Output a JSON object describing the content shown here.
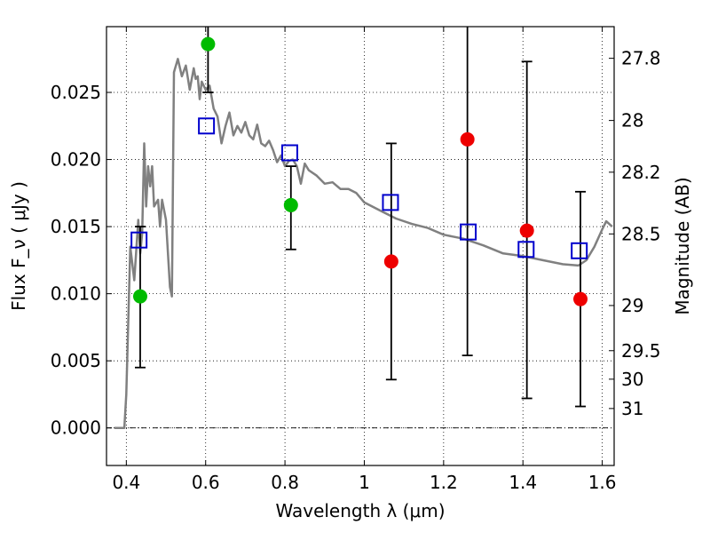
{
  "chart_data": {
    "type": "scatter",
    "xlabel": "Wavelength  λ (μm)",
    "ylabel": "Flux  F_ν  ( μJy )",
    "ylabel_right": "Magnitude (AB)",
    "xlim": [
      0.35,
      1.63
    ],
    "ylim": [
      -0.0028,
      0.0299
    ],
    "grid": true,
    "x_ticks": [
      {
        "value": 0.4,
        "label": "0.4"
      },
      {
        "value": 0.6,
        "label": "0.6"
      },
      {
        "value": 0.8,
        "label": "0.8"
      },
      {
        "value": 1.0,
        "label": "1"
      },
      {
        "value": 1.2,
        "label": "1.2"
      },
      {
        "value": 1.4,
        "label": "1.4"
      },
      {
        "value": 1.6,
        "label": "1.6"
      }
    ],
    "y_ticks": [
      {
        "value": 0.0,
        "label": "0.000"
      },
      {
        "value": 0.005,
        "label": "0.005"
      },
      {
        "value": 0.01,
        "label": "0.010"
      },
      {
        "value": 0.015,
        "label": "0.015"
      },
      {
        "value": 0.02,
        "label": "0.020"
      },
      {
        "value": 0.025,
        "label": "0.025"
      }
    ],
    "mag_ticks": [
      {
        "value": 27.8,
        "label": "27.8"
      },
      {
        "value": 28.0,
        "label": "28"
      },
      {
        "value": 28.2,
        "label": "28.2"
      },
      {
        "value": 28.5,
        "label": "28.5"
      },
      {
        "value": 29.0,
        "label": "29"
      },
      {
        "value": 29.5,
        "label": "29.5"
      },
      {
        "value": 30.0,
        "label": "30"
      },
      {
        "value": 31.0,
        "label": "31"
      }
    ],
    "template_spectrum": {
      "color": "#808080",
      "x": [
        0.37,
        0.395,
        0.4,
        0.41,
        0.42,
        0.43,
        0.435,
        0.44,
        0.445,
        0.45,
        0.455,
        0.46,
        0.465,
        0.47,
        0.48,
        0.485,
        0.49,
        0.5,
        0.51,
        0.515,
        0.52,
        0.53,
        0.54,
        0.55,
        0.56,
        0.57,
        0.575,
        0.58,
        0.585,
        0.59,
        0.6,
        0.61,
        0.62,
        0.63,
        0.64,
        0.65,
        0.66,
        0.67,
        0.68,
        0.69,
        0.7,
        0.71,
        0.72,
        0.73,
        0.74,
        0.75,
        0.76,
        0.77,
        0.78,
        0.79,
        0.8,
        0.81,
        0.82,
        0.83,
        0.84,
        0.85,
        0.86,
        0.88,
        0.9,
        0.92,
        0.94,
        0.96,
        0.98,
        1.0,
        1.04,
        1.08,
        1.12,
        1.16,
        1.2,
        1.25,
        1.3,
        1.35,
        1.4,
        1.45,
        1.5,
        1.54,
        1.56,
        1.58,
        1.6,
        1.61,
        1.625
      ],
      "y": [
        0.0,
        0.0,
        0.0025,
        0.0135,
        0.011,
        0.0155,
        0.013,
        0.0145,
        0.0212,
        0.0165,
        0.0195,
        0.018,
        0.0195,
        0.0165,
        0.017,
        0.015,
        0.017,
        0.0155,
        0.0105,
        0.0098,
        0.0265,
        0.0275,
        0.0262,
        0.027,
        0.0252,
        0.0268,
        0.026,
        0.0262,
        0.0245,
        0.0258,
        0.0252,
        0.0255,
        0.0238,
        0.0232,
        0.0212,
        0.0225,
        0.0235,
        0.0218,
        0.0225,
        0.022,
        0.0228,
        0.0218,
        0.0215,
        0.0226,
        0.0212,
        0.021,
        0.0214,
        0.0207,
        0.0198,
        0.0203,
        0.0195,
        0.0199,
        0.02,
        0.0195,
        0.0182,
        0.0197,
        0.0192,
        0.0188,
        0.0182,
        0.0183,
        0.0178,
        0.0178,
        0.0175,
        0.0168,
        0.0162,
        0.0156,
        0.0152,
        0.0149,
        0.0144,
        0.0141,
        0.0136,
        0.013,
        0.0128,
        0.0125,
        0.0122,
        0.0121,
        0.0125,
        0.0135,
        0.0148,
        0.0154,
        0.015
      ]
    },
    "green_points": {
      "color": "#00bb00",
      "x": [
        0.435,
        0.606,
        0.815
      ],
      "y": [
        0.0098,
        0.0286,
        0.0166
      ]
    },
    "red_points": {
      "color": "#ee0000",
      "x": [
        1.068,
        1.26,
        1.41,
        1.545
      ],
      "y": [
        0.0124,
        0.0215,
        0.0147,
        0.0096
      ]
    },
    "blue_squares": {
      "color": "#0000cc",
      "x": [
        0.432,
        0.602,
        0.812,
        1.066,
        1.262,
        1.408,
        1.542
      ],
      "y": [
        0.014,
        0.0225,
        0.0205,
        0.0168,
        0.0146,
        0.0133,
        0.0132
      ]
    },
    "error_bars": [
      {
        "x": 0.435,
        "low": 0.0045,
        "high": 0.015
      },
      {
        "x": 0.606,
        "low": 0.025,
        "high": 0.0299
      },
      {
        "x": 0.815,
        "low": 0.0133,
        "high": 0.0195
      },
      {
        "x": 1.068,
        "low": 0.0036,
        "high": 0.0212
      },
      {
        "x": 1.26,
        "low": 0.0054,
        "high": 0.0299
      },
      {
        "x": 1.41,
        "low": 0.0022,
        "high": 0.0273
      },
      {
        "x": 1.545,
        "low": 0.0016,
        "high": 0.0176
      }
    ]
  }
}
